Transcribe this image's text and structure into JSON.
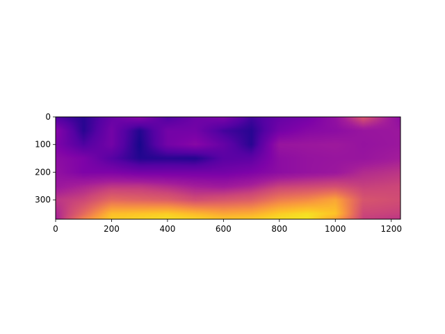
{
  "chart_data": {
    "type": "heatmap",
    "title": "",
    "xlabel": "",
    "ylabel": "",
    "colormap": "plasma",
    "xlim": [
      0,
      1233
    ],
    "ylim": [
      370,
      0
    ],
    "y_axis_inverted": true,
    "colorbar": false,
    "grid": false,
    "x_ticks": [
      0,
      200,
      400,
      600,
      800,
      1000,
      1200
    ],
    "y_ticks": [
      0,
      100,
      200,
      300
    ],
    "x_tick_labels": [
      "0",
      "200",
      "400",
      "600",
      "800",
      "1000",
      "1200"
    ],
    "y_tick_labels": [
      "0",
      "100",
      "200",
      "300"
    ],
    "value_range": [
      0,
      1
    ],
    "grid_x": [
      0,
      100,
      200,
      300,
      400,
      500,
      600,
      700,
      800,
      900,
      1000,
      1100,
      1233
    ],
    "grid_y": [
      0,
      50,
      100,
      150,
      200,
      250,
      300,
      350,
      370
    ],
    "values": [
      [
        0.12,
        0.05,
        0.18,
        0.28,
        0.12,
        0.2,
        0.25,
        0.1,
        0.18,
        0.22,
        0.32,
        0.55,
        0.3
      ],
      [
        0.28,
        0.05,
        0.22,
        0.04,
        0.22,
        0.22,
        0.1,
        0.05,
        0.22,
        0.28,
        0.3,
        0.34,
        0.35
      ],
      [
        0.25,
        0.12,
        0.22,
        0.02,
        0.22,
        0.28,
        0.18,
        0.05,
        0.34,
        0.35,
        0.36,
        0.33,
        0.35
      ],
      [
        0.3,
        0.25,
        0.14,
        0.04,
        0.05,
        0.04,
        0.15,
        0.16,
        0.3,
        0.33,
        0.34,
        0.34,
        0.38
      ],
      [
        0.32,
        0.25,
        0.25,
        0.22,
        0.22,
        0.22,
        0.22,
        0.25,
        0.3,
        0.33,
        0.35,
        0.42,
        0.45
      ],
      [
        0.35,
        0.4,
        0.45,
        0.45,
        0.42,
        0.38,
        0.36,
        0.4,
        0.48,
        0.5,
        0.52,
        0.48,
        0.5
      ],
      [
        0.45,
        0.5,
        0.62,
        0.6,
        0.58,
        0.52,
        0.55,
        0.58,
        0.68,
        0.72,
        0.8,
        0.55,
        0.52
      ],
      [
        0.4,
        0.62,
        0.86,
        0.88,
        0.9,
        0.85,
        0.8,
        0.82,
        0.9,
        0.94,
        0.88,
        0.5,
        0.48
      ],
      [
        0.38,
        0.7,
        0.9,
        0.92,
        0.94,
        0.92,
        0.88,
        0.9,
        0.94,
        0.96,
        0.8,
        0.48,
        0.45
      ]
    ]
  }
}
